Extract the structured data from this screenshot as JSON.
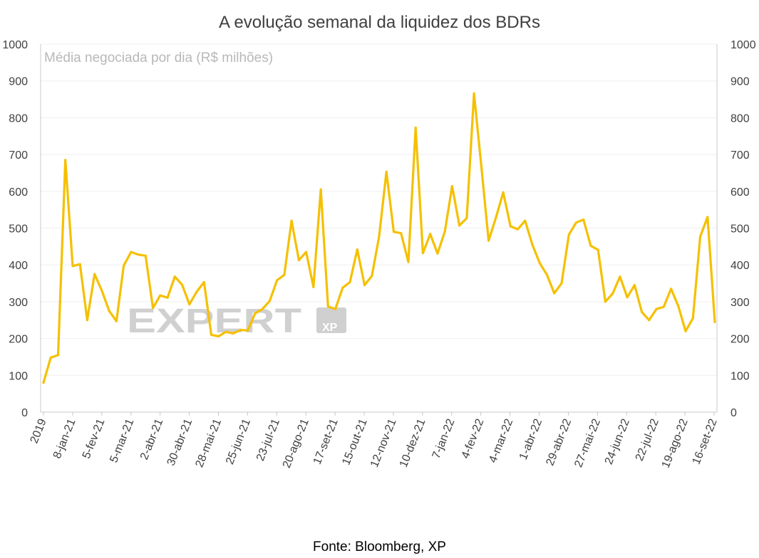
{
  "title": "A evolução semanal da liquidez dos BDRs",
  "source": "Fonte: Bloomberg, XP",
  "watermark": {
    "brand": "EXPERT",
    "badge": "XP",
    "color": "#d0d0d0"
  },
  "colors": {
    "line": "#f5c000",
    "grid": "#efefef",
    "axis": "#c8c8c8"
  },
  "chart_data": {
    "type": "line",
    "title": "A evolução semanal da liquidez dos BDRs",
    "inner_label": "Média negociada por dia (R$ milhões)",
    "xlabel": "",
    "ylabel": "",
    "ylim": [
      0,
      1000
    ],
    "yticks": [
      0,
      100,
      200,
      300,
      400,
      500,
      600,
      700,
      800,
      900,
      1000
    ],
    "secondary_axis": true,
    "grid": true,
    "legend": "none",
    "x_tick_labels": [
      "2019",
      "8-jan-21",
      "5-fev-21",
      "5-mar-21",
      "2-abr-21",
      "30-abr-21",
      "28-mai-21",
      "25-jun-21",
      "23-jul-21",
      "20-ago-21",
      "17-set-21",
      "15-out-21",
      "12-nov-21",
      "10-dez-21",
      "7-jan-22",
      "4-fev-22",
      "4-mar-22",
      "1-abr-22",
      "29-abr-22",
      "27-mai-22",
      "24-jun-22",
      "22-jul-22",
      "19-ago-22",
      "16-set-22"
    ],
    "series": [
      {
        "values": [
          80,
          148,
          155,
          685,
          397,
          402,
          250,
          375,
          330,
          275,
          247,
          398,
          435,
          428,
          425,
          283,
          317,
          311,
          368,
          346,
          293,
          327,
          353,
          210,
          206,
          218,
          214,
          223,
          222,
          268,
          280,
          302,
          358,
          373,
          520,
          413,
          435,
          340,
          605,
          287,
          280,
          338,
          353,
          442,
          345,
          370,
          478,
          653,
          490,
          486,
          408,
          773,
          432,
          484,
          431,
          491,
          614,
          507,
          527,
          866,
          670,
          466,
          528,
          597,
          505,
          497,
          520,
          455,
          405,
          373,
          323,
          350,
          482,
          515,
          523,
          452,
          441,
          300,
          322,
          368,
          312,
          345,
          272,
          250,
          280,
          286,
          335,
          288,
          220,
          255,
          477,
          530,
          245
        ]
      }
    ]
  }
}
